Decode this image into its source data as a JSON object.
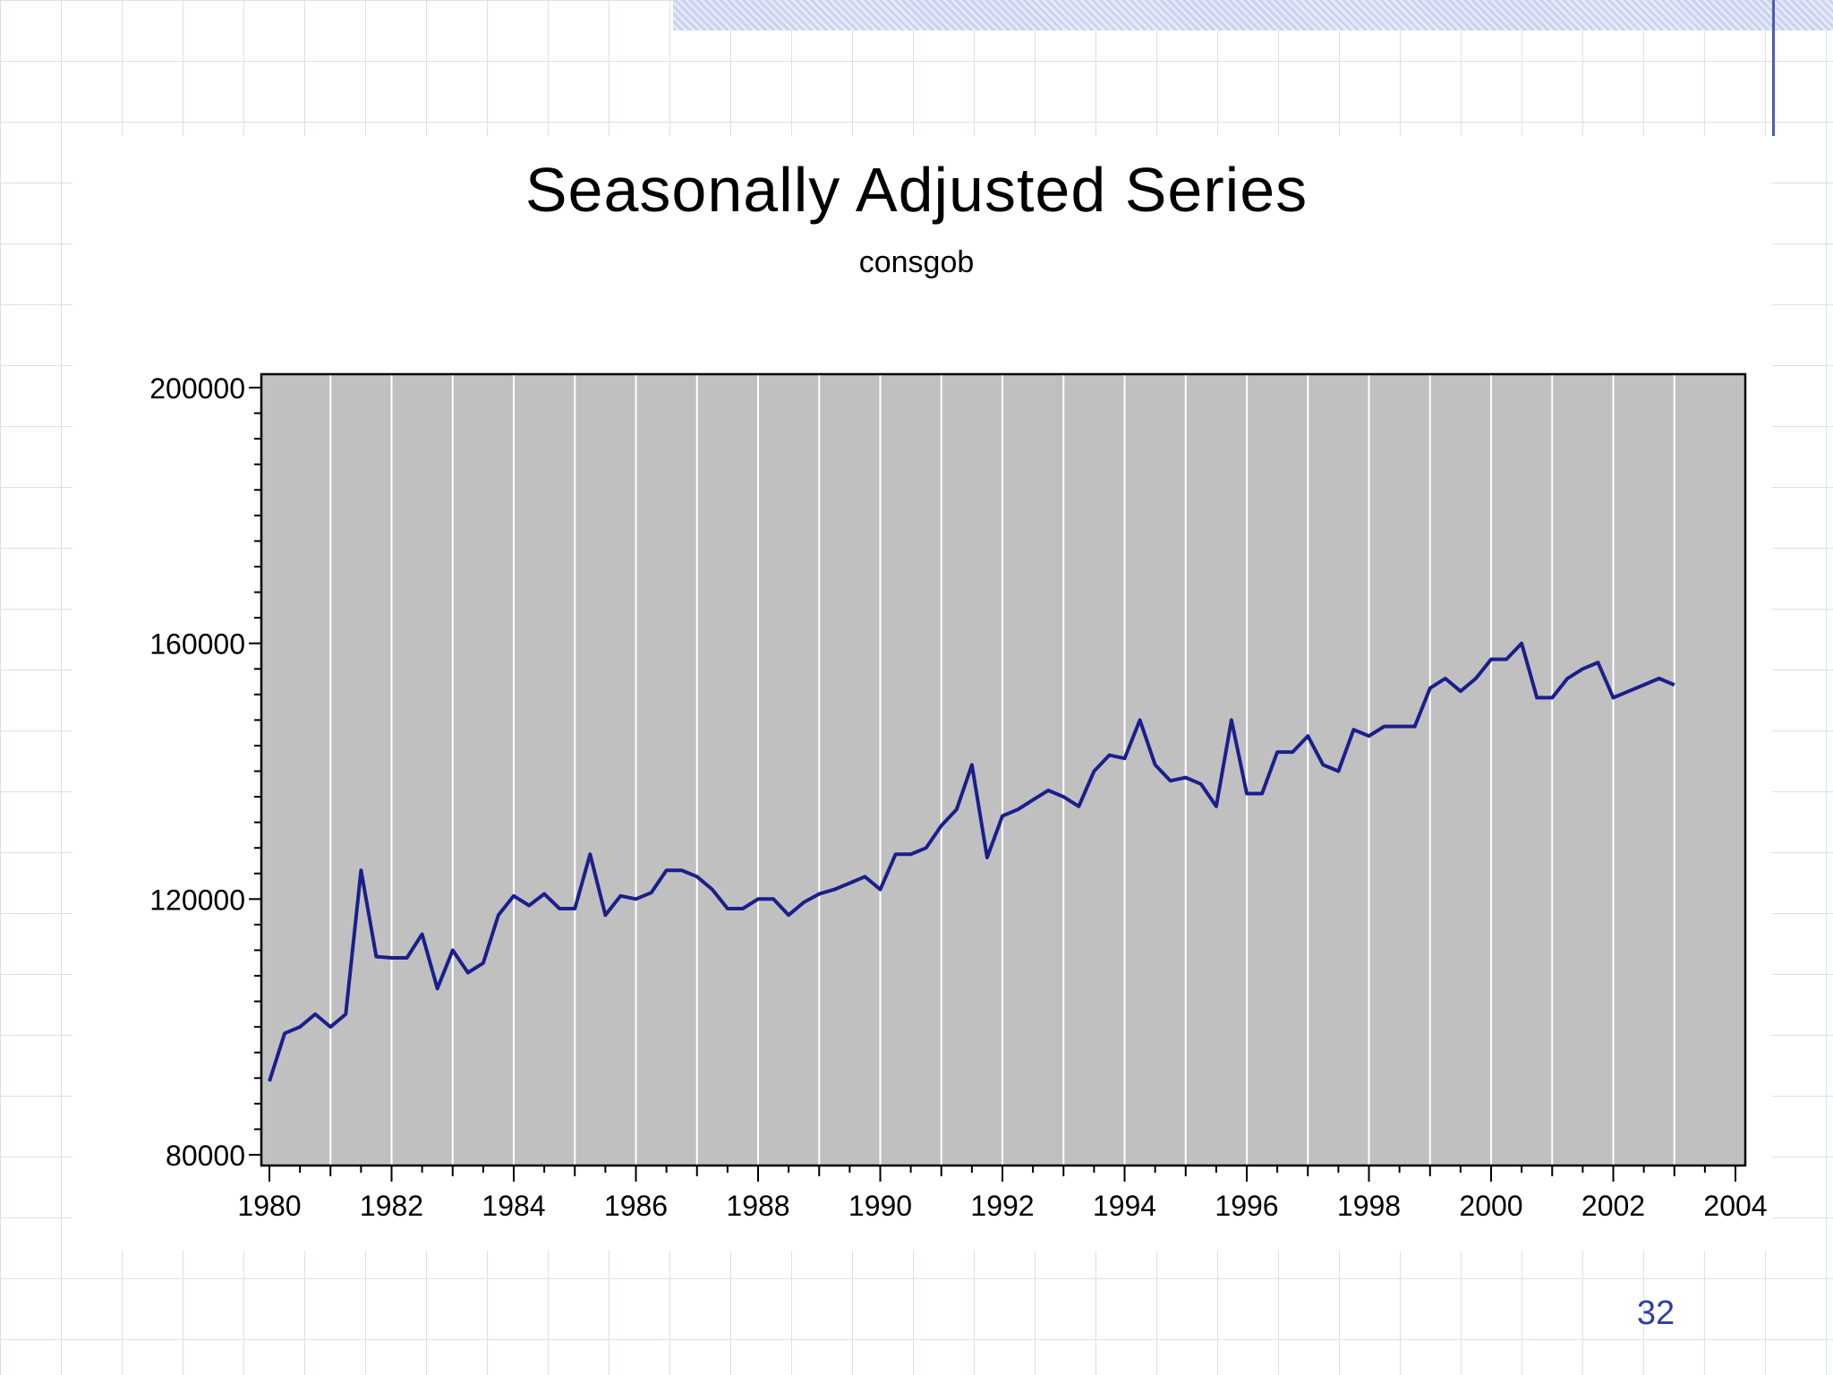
{
  "slide": {
    "page_number": "32"
  },
  "chart_data": {
    "type": "line",
    "title": "Seasonally Adjusted Series",
    "subtitle": "consgob",
    "xlabel": "",
    "ylabel": "",
    "xlim": [
      1980,
      2004
    ],
    "ylim": [
      80000,
      200000
    ],
    "x_ticks": [
      1980,
      1982,
      1984,
      1986,
      1988,
      1990,
      1992,
      1994,
      1996,
      1998,
      2000,
      2002,
      2004
    ],
    "y_ticks": [
      80000,
      120000,
      160000,
      200000
    ],
    "grid": "vertical lines at every year",
    "background": "#c0c0c0",
    "series": [
      {
        "color": "#1a1f8c",
        "x": [
          1980.0,
          1980.25,
          1980.5,
          1980.75,
          1981.0,
          1981.25,
          1981.5,
          1981.75,
          1982.0,
          1982.25,
          1982.5,
          1982.75,
          1983.0,
          1983.25,
          1983.5,
          1983.75,
          1984.0,
          1984.25,
          1984.5,
          1984.75,
          1985.0,
          1985.25,
          1985.5,
          1985.75,
          1986.0,
          1986.25,
          1986.5,
          1986.75,
          1987.0,
          1987.25,
          1987.5,
          1987.75,
          1988.0,
          1988.25,
          1988.5,
          1988.75,
          1989.0,
          1989.25,
          1989.5,
          1989.75,
          1990.0,
          1990.25,
          1990.5,
          1990.75,
          1991.0,
          1991.25,
          1991.5,
          1991.75,
          1992.0,
          1992.25,
          1992.5,
          1992.75,
          1993.0,
          1993.25,
          1993.5,
          1993.75,
          1994.0,
          1994.25,
          1994.5,
          1994.75,
          1995.0,
          1995.25,
          1995.5,
          1995.75,
          1996.0,
          1996.25,
          1996.5,
          1996.75,
          1997.0,
          1997.25,
          1997.5,
          1997.75,
          1998.0,
          1998.25,
          1998.5,
          1998.75,
          1999.0,
          1999.25,
          1999.5,
          1999.75,
          2000.0,
          2000.25,
          2000.5,
          2000.75,
          2001.0,
          2001.25,
          2001.5,
          2001.75,
          2002.0,
          2002.25,
          2002.5,
          2002.75,
          2003.0
        ],
        "values": [
          91500,
          99000,
          100000,
          102000,
          100000,
          102000,
          124500,
          111000,
          110800,
          110800,
          114500,
          106000,
          112000,
          108500,
          110000,
          117500,
          120500,
          119000,
          120800,
          118500,
          118500,
          127000,
          117500,
          120500,
          120000,
          121000,
          124500,
          124500,
          123500,
          121500,
          118500,
          118500,
          120000,
          120000,
          117500,
          119500,
          120800,
          121500,
          122500,
          123500,
          121500,
          127000,
          127000,
          128000,
          131500,
          134000,
          141000,
          126500,
          133000,
          134000,
          135500,
          137000,
          136000,
          134500,
          140000,
          142500,
          142000,
          148000,
          141000,
          138500,
          139000,
          138000,
          134500,
          148000,
          136500,
          136500,
          143000,
          143000,
          145500,
          141000,
          140000,
          146500,
          145500,
          147000,
          147000,
          147000,
          153000,
          154500,
          152500,
          154500,
          157500,
          157500,
          160000,
          151500,
          151500,
          154500,
          156000,
          157000,
          151500,
          152500,
          153500,
          154500,
          153500
        ]
      }
    ]
  }
}
